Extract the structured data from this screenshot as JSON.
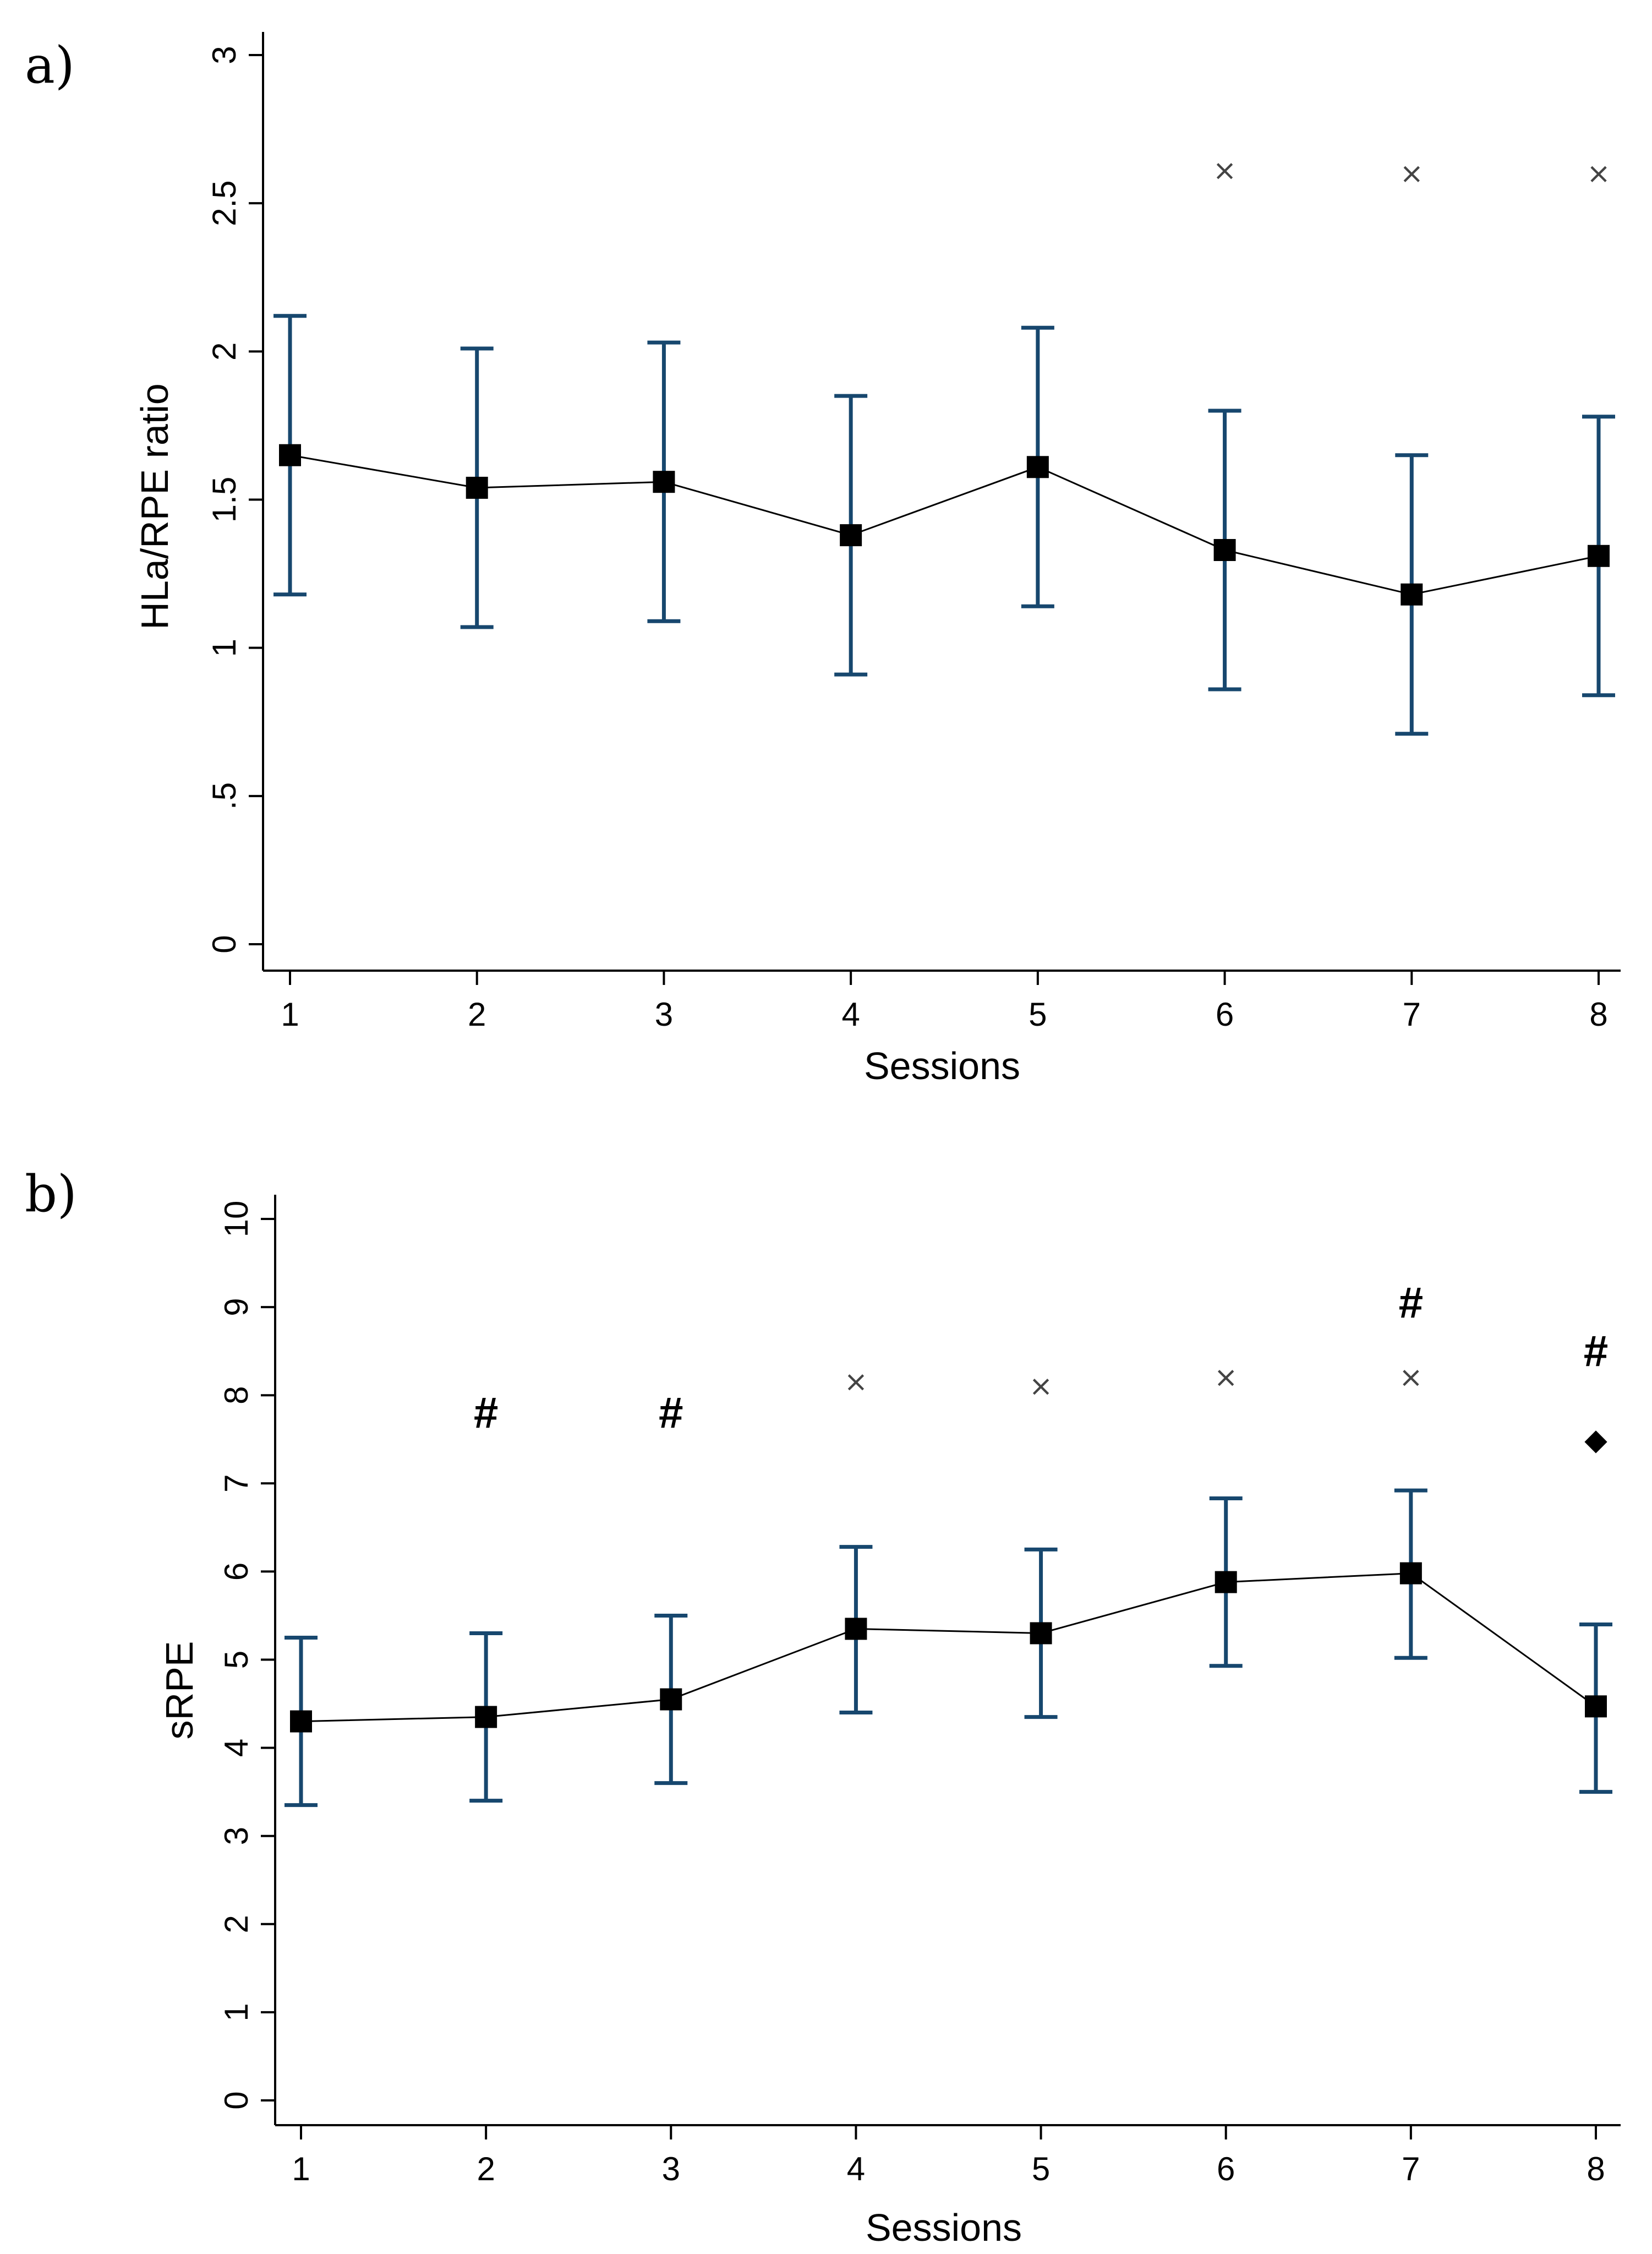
{
  "chart_data": [
    {
      "panel_label": "a)",
      "type": "line",
      "xlabel": "Sessions",
      "ylabel": "HLa/RPE ratio",
      "x": [
        1,
        2,
        3,
        4,
        5,
        6,
        7,
        8
      ],
      "ylim": [
        0,
        3
      ],
      "y_ticks": [
        0,
        0.5,
        1,
        1.5,
        2,
        2.5,
        3
      ],
      "y_tick_labels": [
        "0",
        ".5",
        "1",
        "1.5",
        "2",
        "2.5",
        "3"
      ],
      "series": [
        {
          "name": "HLa/RPE ratio",
          "values": [
            1.65,
            1.54,
            1.56,
            1.38,
            1.61,
            1.33,
            1.18,
            1.31
          ],
          "error_low": [
            1.18,
            1.07,
            1.09,
            0.91,
            1.14,
            0.86,
            0.71,
            0.84
          ],
          "error_high": [
            2.12,
            2.01,
            2.03,
            1.85,
            2.08,
            1.8,
            1.65,
            1.78
          ]
        }
      ],
      "annotations": [
        {
          "symbol": "×",
          "kind": "x",
          "x": 6,
          "y": 2.61
        },
        {
          "symbol": "×",
          "kind": "x",
          "x": 7,
          "y": 2.6
        },
        {
          "symbol": "×",
          "kind": "x",
          "x": 8,
          "y": 2.6
        }
      ],
      "colors": {
        "errorbar": "#17476e",
        "line": "#000000",
        "marker": "#000000",
        "axis": "#000000"
      }
    },
    {
      "panel_label": "b)",
      "type": "line",
      "xlabel": "Sessions",
      "ylabel": "sRPE",
      "x": [
        1,
        2,
        3,
        4,
        5,
        6,
        7,
        8
      ],
      "ylim": [
        0,
        10
      ],
      "y_ticks": [
        0,
        1,
        2,
        3,
        4,
        5,
        6,
        7,
        8,
        9,
        10
      ],
      "y_tick_labels": [
        "0",
        "1",
        "2",
        "3",
        "4",
        "5",
        "6",
        "7",
        "8",
        "9",
        "10"
      ],
      "series": [
        {
          "name": "sRPE",
          "values": [
            4.3,
            4.35,
            4.55,
            5.35,
            5.3,
            5.88,
            5.98,
            4.47
          ],
          "error_low": [
            3.35,
            3.4,
            3.6,
            4.4,
            4.35,
            4.93,
            5.02,
            3.5
          ],
          "error_high": [
            5.25,
            5.3,
            5.5,
            6.28,
            6.25,
            6.83,
            6.92,
            5.4
          ]
        }
      ],
      "annotations": [
        {
          "symbol": "#",
          "kind": "hash",
          "x": 2,
          "y": 7.8
        },
        {
          "symbol": "#",
          "kind": "hash",
          "x": 3,
          "y": 7.8
        },
        {
          "symbol": "×",
          "kind": "x",
          "x": 4,
          "y": 8.15
        },
        {
          "symbol": "×",
          "kind": "x",
          "x": 5,
          "y": 8.1
        },
        {
          "symbol": "×",
          "kind": "x",
          "x": 6,
          "y": 8.2
        },
        {
          "symbol": "#",
          "kind": "hash",
          "x": 7,
          "y": 9.05
        },
        {
          "symbol": "×",
          "kind": "x",
          "x": 7,
          "y": 8.2
        },
        {
          "symbol": "#",
          "kind": "hash",
          "x": 8,
          "y": 8.5
        },
        {
          "symbol": "◆",
          "kind": "diamond",
          "x": 8,
          "y": 7.5
        }
      ],
      "colors": {
        "errorbar": "#17476e",
        "line": "#000000",
        "marker": "#000000",
        "axis": "#000000"
      }
    }
  ]
}
